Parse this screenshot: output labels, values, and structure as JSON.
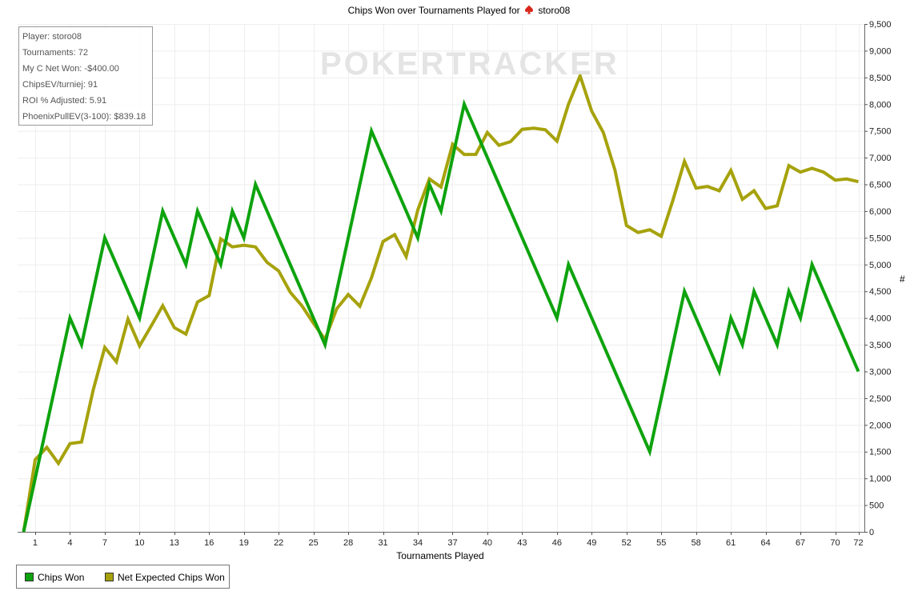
{
  "title": {
    "prefix": "Chips Won over Tournaments Played for",
    "player": "storo08"
  },
  "watermark": "POKERTRACKER",
  "stats": [
    "Player: storo08",
    "Tournaments: 72",
    "My C Net Won: -$400.00",
    "ChipsEV/turniej: 91",
    "ROI % Adjusted: 5.91",
    "PhoenixPullEV(3-100): $839.18"
  ],
  "colors": {
    "chips_won": "#0ea30e",
    "net_expected": "#a6a20c",
    "grid": "#eeeeee",
    "spade": "#d9261c"
  },
  "chart_data": {
    "type": "line",
    "title": "Chips Won over Tournaments Played for storo08",
    "xlabel": "Tournaments Played",
    "ylabel": "#",
    "xlim": [
      0,
      72
    ],
    "ylim": [
      0,
      9500
    ],
    "grid": true,
    "legend_position": "bottom-left",
    "x_ticks": [
      1,
      4,
      7,
      10,
      13,
      16,
      19,
      22,
      25,
      28,
      31,
      34,
      37,
      40,
      43,
      46,
      49,
      52,
      55,
      58,
      61,
      64,
      67,
      70,
      72
    ],
    "y_ticks": [
      0,
      500,
      1000,
      1500,
      2000,
      2500,
      3000,
      3500,
      4000,
      4500,
      5000,
      5500,
      6000,
      6500,
      7000,
      7500,
      8000,
      8500,
      9000,
      9500
    ],
    "series": [
      {
        "name": "Chips Won",
        "points": [
          [
            0,
            0
          ],
          [
            4,
            4000
          ],
          [
            5,
            3500
          ],
          [
            7,
            5500
          ],
          [
            10,
            4000
          ],
          [
            12,
            6000
          ],
          [
            14,
            5000
          ],
          [
            15,
            6000
          ],
          [
            17,
            5000
          ],
          [
            18,
            6000
          ],
          [
            19,
            5500
          ],
          [
            20,
            6500
          ],
          [
            26,
            3500
          ],
          [
            30,
            7500
          ],
          [
            34,
            5500
          ],
          [
            35,
            6500
          ],
          [
            36,
            6000
          ],
          [
            38,
            8000
          ],
          [
            46,
            4000
          ],
          [
            47,
            5000
          ],
          [
            54,
            1500
          ],
          [
            57,
            4500
          ],
          [
            60,
            3000
          ],
          [
            61,
            4000
          ],
          [
            62,
            3500
          ],
          [
            63,
            4500
          ],
          [
            65,
            3500
          ],
          [
            66,
            4500
          ],
          [
            67,
            4000
          ],
          [
            68,
            5000
          ],
          [
            72,
            3000
          ]
        ]
      },
      {
        "name": "Net Expected Chips Won",
        "points": [
          [
            0,
            0
          ],
          [
            1,
            1350
          ],
          [
            2,
            1580
          ],
          [
            3,
            1280
          ],
          [
            4,
            1650
          ],
          [
            5,
            1680
          ],
          [
            6,
            2650
          ],
          [
            7,
            3450
          ],
          [
            8,
            3180
          ],
          [
            9,
            3980
          ],
          [
            10,
            3480
          ],
          [
            11,
            3850
          ],
          [
            12,
            4230
          ],
          [
            13,
            3820
          ],
          [
            14,
            3700
          ],
          [
            15,
            4300
          ],
          [
            16,
            4420
          ],
          [
            17,
            5480
          ],
          [
            18,
            5330
          ],
          [
            19,
            5360
          ],
          [
            20,
            5330
          ],
          [
            21,
            5040
          ],
          [
            22,
            4880
          ],
          [
            23,
            4480
          ],
          [
            24,
            4230
          ],
          [
            25,
            3900
          ],
          [
            26,
            3600
          ],
          [
            27,
            4170
          ],
          [
            28,
            4440
          ],
          [
            29,
            4220
          ],
          [
            30,
            4750
          ],
          [
            31,
            5430
          ],
          [
            32,
            5560
          ],
          [
            33,
            5150
          ],
          [
            34,
            6020
          ],
          [
            35,
            6600
          ],
          [
            36,
            6450
          ],
          [
            37,
            7250
          ],
          [
            38,
            7060
          ],
          [
            39,
            7060
          ],
          [
            40,
            7470
          ],
          [
            41,
            7230
          ],
          [
            42,
            7300
          ],
          [
            43,
            7530
          ],
          [
            44,
            7550
          ],
          [
            45,
            7520
          ],
          [
            46,
            7310
          ],
          [
            47,
            8000
          ],
          [
            48,
            8530
          ],
          [
            49,
            7870
          ],
          [
            50,
            7470
          ],
          [
            51,
            6770
          ],
          [
            52,
            5730
          ],
          [
            53,
            5600
          ],
          [
            54,
            5650
          ],
          [
            55,
            5530
          ],
          [
            56,
            6200
          ],
          [
            57,
            6930
          ],
          [
            58,
            6430
          ],
          [
            59,
            6460
          ],
          [
            60,
            6380
          ],
          [
            61,
            6760
          ],
          [
            62,
            6220
          ],
          [
            63,
            6380
          ],
          [
            64,
            6050
          ],
          [
            65,
            6100
          ],
          [
            66,
            6850
          ],
          [
            67,
            6730
          ],
          [
            68,
            6800
          ],
          [
            69,
            6730
          ],
          [
            70,
            6580
          ],
          [
            71,
            6600
          ],
          [
            72,
            6550
          ]
        ]
      }
    ]
  }
}
